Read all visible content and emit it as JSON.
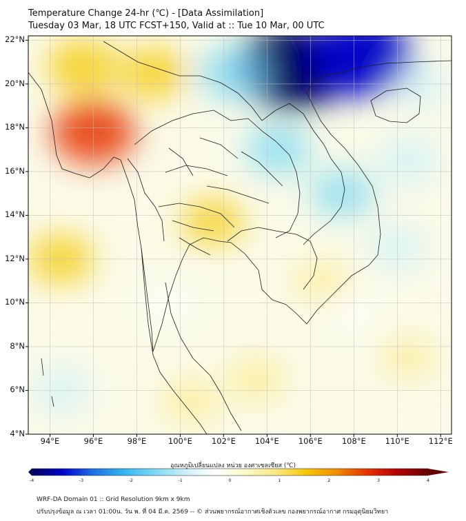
{
  "title": {
    "line1": "Temperature Change 24-hr (℃) - [Data Assimilation]",
    "line2": "Tuesday 03 Mar, 18 UTC FCST+150, Valid at :: Tue 10 Mar, 00 UTC"
  },
  "lat_labels": [
    "22°N",
    "20°N",
    "18°N",
    "16°N",
    "14°N",
    "12°N",
    "10°N",
    "8°N",
    "6°N",
    "4°N"
  ],
  "lon_labels": [
    "94°E",
    "96°E",
    "98°E",
    "100°E",
    "102°E",
    "104°E",
    "106°E",
    "108°E",
    "110°E",
    "112°E"
  ],
  "map": {
    "lon_range": [
      93,
      112.5
    ],
    "lat_range": [
      4,
      22.2
    ],
    "anomalies": [
      {
        "lon": 96.0,
        "lat": 17.8,
        "value": 2.5
      },
      {
        "lon": 95.5,
        "lat": 20.8,
        "value": 1.8
      },
      {
        "lon": 98.8,
        "lat": 20.5,
        "value": 1.6
      },
      {
        "lon": 94.5,
        "lat": 12.0,
        "value": 1.5
      },
      {
        "lon": 101.5,
        "lat": 13.7,
        "value": 1.3
      },
      {
        "lon": 100.5,
        "lat": 5.5,
        "value": 1.0
      },
      {
        "lon": 103.5,
        "lat": 6.5,
        "value": 1.0
      },
      {
        "lon": 106.5,
        "lat": 11.0,
        "value": 0.8
      },
      {
        "lon": 110.5,
        "lat": 7.5,
        "value": 0.8
      },
      {
        "lon": 105.2,
        "lat": 20.8,
        "value": -4.0
      },
      {
        "lon": 108.3,
        "lat": 21.3,
        "value": -3.6
      },
      {
        "lon": 102.5,
        "lat": 20.5,
        "value": -1.8
      },
      {
        "lon": 104.5,
        "lat": 17.0,
        "value": -1.5
      },
      {
        "lon": 107.5,
        "lat": 15.0,
        "value": -1.4
      },
      {
        "lon": 110.5,
        "lat": 16.5,
        "value": -1.2
      },
      {
        "lon": 110.0,
        "lat": 12.5,
        "value": -1.0
      },
      {
        "lon": 94.5,
        "lat": 6.0,
        "value": -1.0
      },
      {
        "lon": 111.0,
        "lat": 20.0,
        "value": -1.0
      },
      {
        "lon": 99.5,
        "lat": 10.0,
        "value": -0.6
      },
      {
        "lon": 108.0,
        "lat": 9.5,
        "value": -0.5
      }
    ]
  },
  "colorbar": {
    "label": "อุณหภูมิเปลี่ยนแปลง หน่วย องศาเซลเซียส (℃)",
    "min": -4,
    "max": 4,
    "ticks": [
      "-4",
      "-3",
      "-2",
      "-1",
      "0",
      "1",
      "2",
      "3",
      "4"
    ],
    "colors": [
      "#00005a",
      "#0000c8",
      "#1e6ee6",
      "#32b4f0",
      "#7ad8f5",
      "#c8f0fa",
      "#ffffff",
      "#fafac8",
      "#fbe882",
      "#f5c800",
      "#f08c00",
      "#e63200",
      "#b40000",
      "#640000"
    ]
  },
  "footer": {
    "line1": "WRF-DA Domain 01 :: Grid Resolution 9km x 9km",
    "line2": "ปรับปรุงข้อมูล ณ เวลา 01:00น. วัน พ. ที่ 04 มี.ค. 2569 -- © ส่วนพยากรณ์อากาศเชิงตัวเลข กองพยากรณ์อากาศ กรมอุตุนิยมวิทยา"
  }
}
